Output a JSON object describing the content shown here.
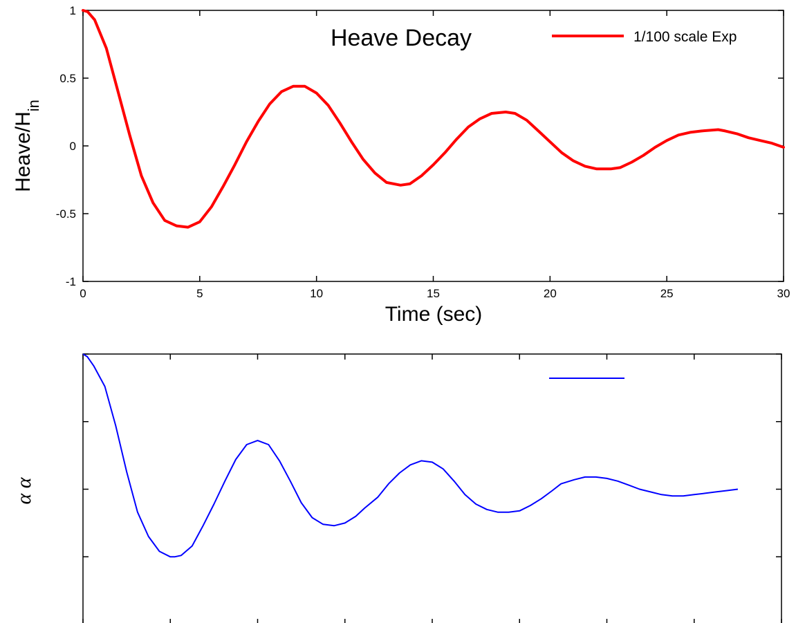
{
  "chart_data": [
    {
      "type": "line",
      "title": "Heave Decay",
      "xlabel": "Time (sec)",
      "ylabel_main": "Heave/H",
      "ylabel_sub": "in",
      "xlim": [
        0,
        30
      ],
      "ylim": [
        -1,
        1
      ],
      "xticks": [
        0,
        5,
        10,
        15,
        20,
        25,
        30
      ],
      "xtick_labels": [
        "0",
        "5",
        "10",
        "15",
        "20",
        "25",
        "30"
      ],
      "yticks": [
        -1,
        -0.5,
        0,
        0.5,
        1
      ],
      "ytick_labels": [
        "-1",
        "-0.5",
        "0",
        "0.5",
        "1"
      ],
      "grid": false,
      "legend_position": "top-right",
      "series": [
        {
          "name": "1/100 scale Exp",
          "color": "#ff0000",
          "x": [
            0,
            0.2,
            0.5,
            1.0,
            1.5,
            2.0,
            2.5,
            3.0,
            3.5,
            4.0,
            4.5,
            5.0,
            5.5,
            6.0,
            6.5,
            7.0,
            7.5,
            8.0,
            8.5,
            9.0,
            9.5,
            10.0,
            10.5,
            11.0,
            11.5,
            12.0,
            12.5,
            13.0,
            13.6,
            14.0,
            14.5,
            15.0,
            15.5,
            16.0,
            16.5,
            17.0,
            17.5,
            18.1,
            18.5,
            19.0,
            19.5,
            20.0,
            20.5,
            21.0,
            21.5,
            22.0,
            22.6,
            23.0,
            23.5,
            24.0,
            24.5,
            25.0,
            25.5,
            26.0,
            26.5,
            27.2,
            27.5,
            28.0,
            28.5,
            29.0,
            29.5,
            30.0
          ],
          "y": [
            1.0,
            0.99,
            0.93,
            0.72,
            0.4,
            0.08,
            -0.22,
            -0.42,
            -0.55,
            -0.59,
            -0.6,
            -0.56,
            -0.45,
            -0.3,
            -0.14,
            0.03,
            0.18,
            0.31,
            0.4,
            0.44,
            0.44,
            0.39,
            0.3,
            0.17,
            0.03,
            -0.1,
            -0.2,
            -0.27,
            -0.29,
            -0.28,
            -0.22,
            -0.14,
            -0.05,
            0.05,
            0.14,
            0.2,
            0.24,
            0.25,
            0.24,
            0.19,
            0.11,
            0.03,
            -0.05,
            -0.11,
            -0.15,
            -0.17,
            -0.17,
            -0.16,
            -0.12,
            -0.07,
            -0.01,
            0.04,
            0.08,
            0.1,
            0.11,
            0.12,
            0.11,
            0.09,
            0.06,
            0.04,
            0.02,
            -0.01
          ]
        }
      ]
    },
    {
      "type": "line",
      "title": "",
      "ylabel": "α α",
      "grid": false,
      "legend_position": "top-right",
      "series": [
        {
          "color": "#0000ff",
          "x": [
            0,
            0.2,
            0.5,
            1.0,
            1.5,
            2.0,
            2.5,
            3.0,
            3.5,
            4.0,
            4.2,
            4.5,
            5.0,
            5.5,
            6.0,
            6.5,
            7.0,
            7.5,
            8.0,
            8.5,
            9.0,
            9.5,
            10.0,
            10.5,
            11.0,
            11.5,
            12.0,
            12.5,
            12.9,
            13.5,
            14.0,
            14.5,
            15.0,
            15.5,
            16.0,
            16.5,
            17.0,
            17.5,
            18.0,
            18.5,
            19.0,
            19.5,
            20.0,
            20.5,
            21.0,
            21.5,
            21.9,
            22.5,
            23.0,
            23.5,
            24.0,
            24.5,
            25.0,
            25.5,
            26.0,
            26.5,
            27.0,
            27.5,
            28.0,
            28.5,
            29.0,
            29.5,
            30.0
          ],
          "y": [
            1.0,
            0.98,
            0.91,
            0.76,
            0.47,
            0.13,
            -0.17,
            -0.35,
            -0.46,
            -0.5,
            -0.5,
            -0.49,
            -0.42,
            -0.27,
            -0.11,
            0.06,
            0.22,
            0.33,
            0.36,
            0.33,
            0.21,
            0.06,
            -0.1,
            -0.21,
            -0.26,
            -0.27,
            -0.25,
            -0.2,
            -0.14,
            -0.06,
            0.04,
            0.12,
            0.18,
            0.21,
            0.2,
            0.15,
            0.06,
            -0.04,
            -0.11,
            -0.15,
            -0.17,
            -0.17,
            -0.16,
            -0.12,
            -0.07,
            -0.01,
            0.04,
            0.07,
            0.09,
            0.09,
            0.08,
            0.06,
            0.03,
            0.0,
            -0.02,
            -0.04,
            -0.05,
            -0.05,
            -0.04,
            -0.03,
            -0.02,
            -0.01,
            0.0
          ],
          "ylim": [
            -1,
            1
          ],
          "xlim": [
            0,
            32
          ]
        }
      ]
    }
  ]
}
